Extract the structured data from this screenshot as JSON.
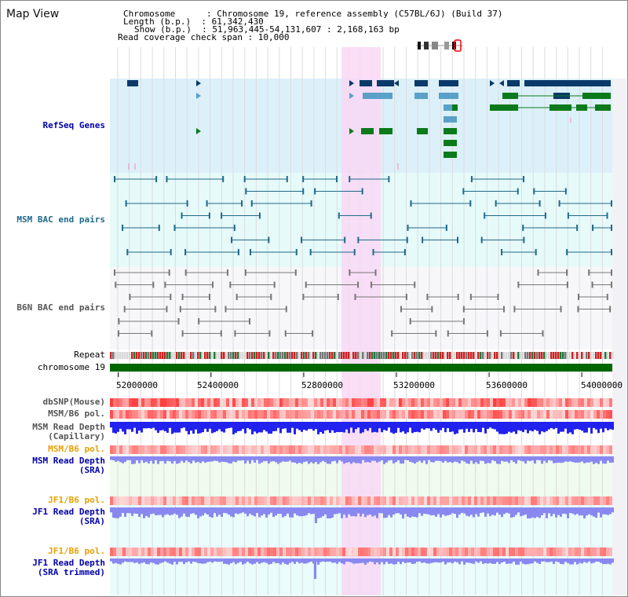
{
  "header": {
    "title": "Map View",
    "info_lines": [
      "Chromosome      : Chromosome 19, reference assembly (C57BL/6J) (Build 37)",
      "Length (b.p.)  : 61,342,430",
      "Show (b.p.)  : 51,963,445-54,131,607 : 2,168,163 bp",
      "Read coverage check span : 10,000"
    ]
  },
  "tracks": {
    "refseq": "RefSeq Genes",
    "msm_bac": "MSM BAC end pairs",
    "b6n_bac": "B6N BAC end pairs",
    "repeat": "Repeat",
    "chromosome": "chromosome 19",
    "dbsnp": "dbSNP(Mouse)",
    "msm_b6_pol": "MSM/B6 pol.",
    "msm_depth_cap_1": "MSM Read Depth",
    "msm_depth_cap_2": "(Capillary)",
    "msm_b6_pol2": "MSM/B6 pol.",
    "msm_depth_sra_1": "MSM Read Depth",
    "msm_depth_sra_2": "(SRA)",
    "jf1_pol": "JF1/B6 pol.",
    "jf1_depth_1": "JF1 Read Depth",
    "jf1_depth_2": "(SRA)",
    "jf1_pol2": "JF1/B6 pol.",
    "jf1_trim_1": "JF1 Read Depth",
    "jf1_trim_2": "(SRA trimmed)"
  },
  "axis": {
    "range": [
      51963445,
      54131607
    ],
    "ticks": [
      "52000000",
      "52400000",
      "52800000",
      "53200000",
      "53600000",
      "54000000"
    ],
    "tick_values": [
      52000000,
      52400000,
      52800000,
      53200000,
      53600000,
      54000000
    ]
  },
  "colors": {
    "refseq_bg": "#dcf0fa",
    "bac_bg": "#e6fafa",
    "b6n_bg": "#f7f7fa",
    "highlight": "#f8d8f4",
    "gene_navy": "#0a3a6a",
    "gene_light": "#5aa0c8",
    "gene_green": "#0a7a1a",
    "chromosome": "#006600",
    "depth_blue": "#2222ee",
    "depth_lavender": "#8888f0"
  }
}
